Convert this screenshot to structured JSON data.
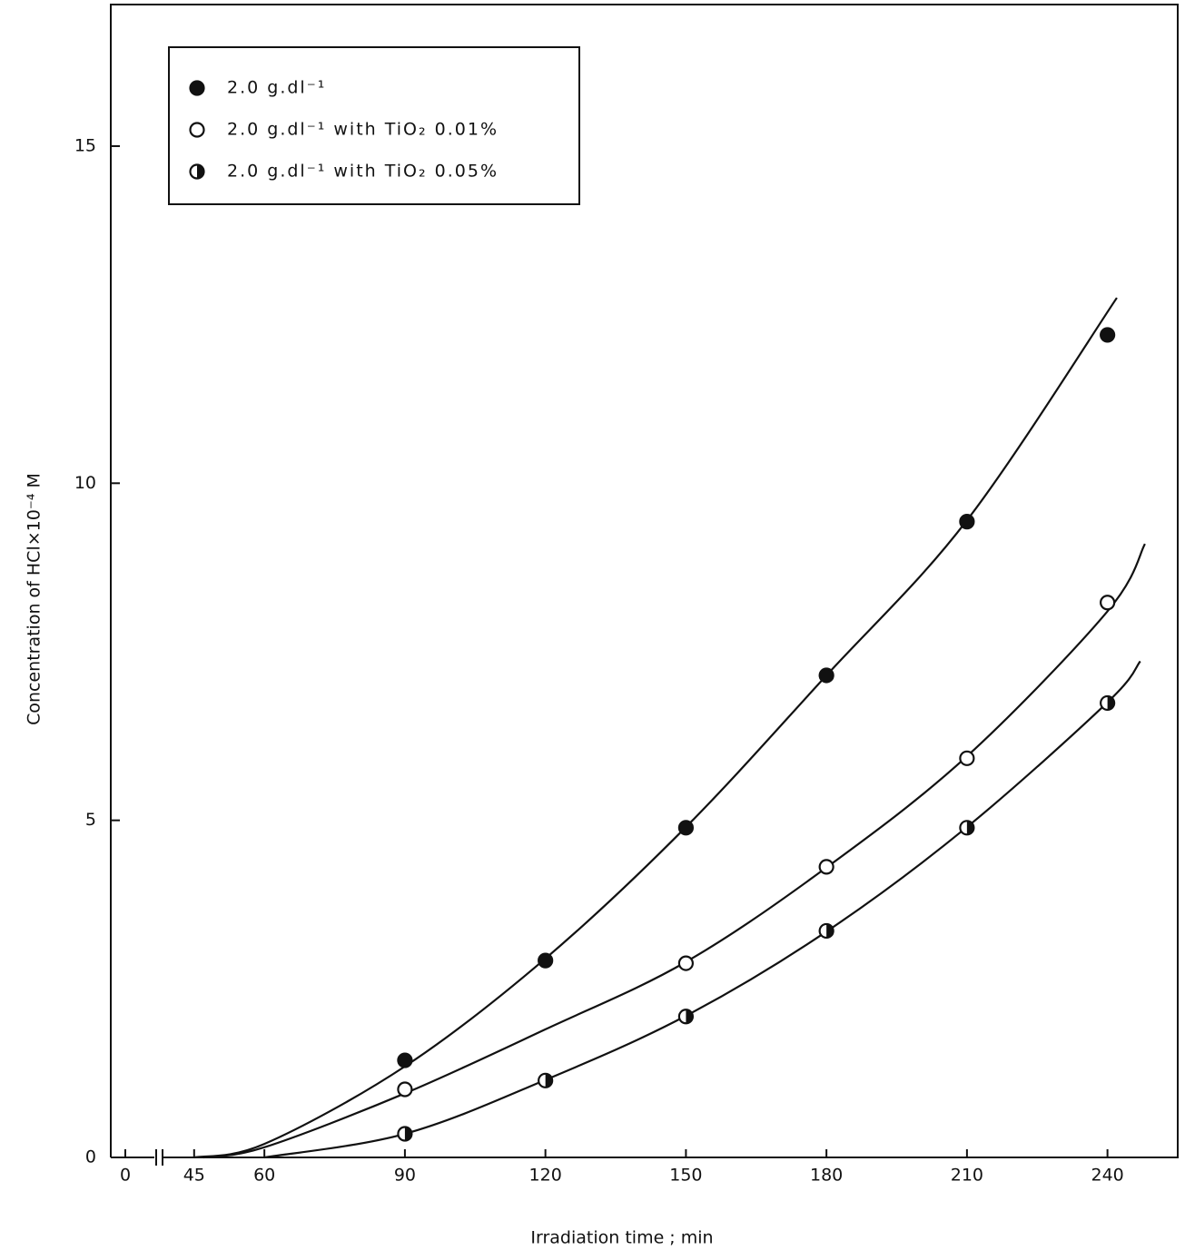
{
  "chart_data": {
    "type": "scatter",
    "x_label": "Irradiation time ; min",
    "y_label": "Concentration of HCl×10⁻⁴ M",
    "xlim": [
      40,
      255
    ],
    "ylim": [
      0,
      17.1
    ],
    "xticks": [
      0,
      45,
      60,
      90,
      120,
      150,
      180,
      210,
      240
    ],
    "yticks": [
      0,
      5,
      10,
      15
    ],
    "axis_break": true,
    "grid": false,
    "legend": "top-left",
    "series": [
      {
        "name": "2.0 g.dl⁻¹",
        "color": "#111111",
        "marker": "filled",
        "x": [
          90,
          120,
          150,
          180,
          210,
          240
        ],
        "values": [
          1.44,
          2.92,
          4.89,
          7.15,
          9.43,
          12.2
        ],
        "curve": {
          "x": [
            45,
            60,
            90,
            120,
            150,
            180,
            210,
            242
          ],
          "values": [
            0,
            0.2,
            1.35,
            2.95,
            4.9,
            7.15,
            9.45,
            12.75
          ]
        }
      },
      {
        "name": "2.0 g.dl⁻¹ with TiO₂ 0.01%",
        "color": "#111111",
        "marker": "open",
        "x": [
          90,
          150,
          180,
          210,
          240
        ],
        "values": [
          1.01,
          2.88,
          4.31,
          5.92,
          8.23
        ],
        "curve": {
          "x": [
            47,
            60,
            90,
            120,
            150,
            180,
            210,
            240,
            248
          ],
          "values": [
            0,
            0.15,
            0.95,
            1.9,
            2.9,
            4.3,
            5.95,
            8.1,
            9.1
          ]
        }
      },
      {
        "name": "2.0 g.dl⁻¹ with TiO₂ 0.05%",
        "color": "#111111",
        "marker": "half",
        "x": [
          90,
          120,
          150,
          180,
          210,
          240
        ],
        "values": [
          0.35,
          1.14,
          2.09,
          3.36,
          4.89,
          6.74
        ],
        "curve": {
          "x": [
            60,
            90,
            120,
            150,
            180,
            210,
            240,
            247
          ],
          "values": [
            0,
            0.35,
            1.15,
            2.1,
            3.35,
            4.9,
            6.75,
            7.36
          ]
        }
      }
    ]
  }
}
